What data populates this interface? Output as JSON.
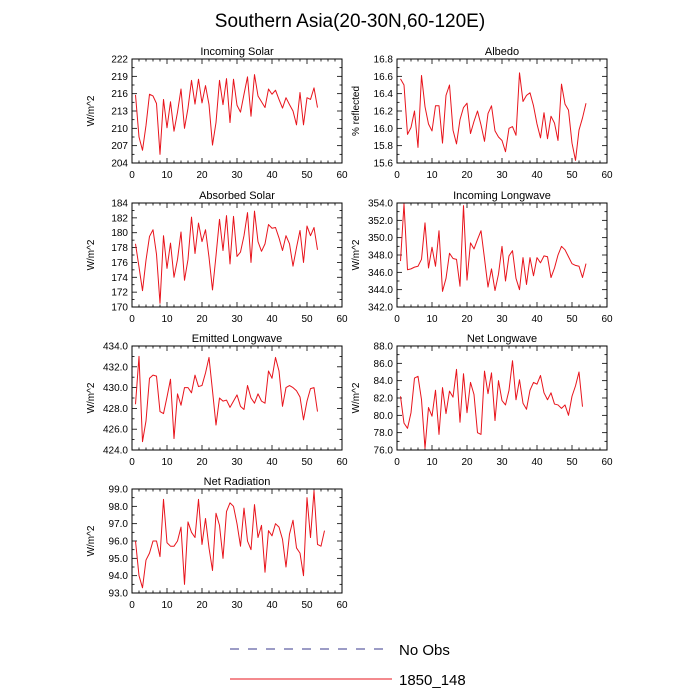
{
  "figure": {
    "title": "Southern Asia(20-30N,60-120E)",
    "line_color": "#e8141c",
    "obs_color": "#3a3a8c"
  },
  "legend": {
    "position": "bottom-center",
    "entries": [
      {
        "label": "No Obs",
        "style": "dashed",
        "color": "#3a3a8c"
      },
      {
        "label": "1850_148",
        "style": "solid",
        "color": "#e8141c"
      }
    ]
  },
  "chart_data": [
    {
      "type": "line",
      "title": "Incoming Solar",
      "ylabel": "W/m^2",
      "xlim": [
        0,
        60
      ],
      "ylim": [
        204,
        222
      ],
      "xticks": [
        0,
        10,
        20,
        30,
        40,
        50,
        60
      ],
      "yticks": [
        204,
        207,
        210,
        213,
        216,
        219,
        222
      ],
      "ytick_labels": [
        "204",
        "207",
        "210",
        "213",
        "216",
        "219",
        "222"
      ],
      "series": [
        {
          "name": "1850_148",
          "x_start": 1,
          "values": [
            215.8,
            208.5,
            206.2,
            210.5,
            215.9,
            215.6,
            214.3,
            205.5,
            215.0,
            210.1,
            214.6,
            209.5,
            212.8,
            216.8,
            210.0,
            213.5,
            218.3,
            214.2,
            218.5,
            214.4,
            217.4,
            214.1,
            207.1,
            211.0,
            218.3,
            214.1,
            218.6,
            211.0,
            218.5,
            214.0,
            212.8,
            215.9,
            218.9,
            212.1,
            219.3,
            215.6,
            214.6,
            213.6,
            216.8,
            215.9,
            216.6,
            215.0,
            213.5,
            215.3,
            214.1,
            213.0,
            210.6,
            216.2,
            210.6,
            215.3,
            215.0,
            217.0,
            213.6
          ]
        }
      ]
    },
    {
      "type": "line",
      "title": "Albedo",
      "ylabel": "% reflected",
      "xlim": [
        0,
        60
      ],
      "ylim": [
        15.6,
        16.8
      ],
      "xticks": [
        0,
        10,
        20,
        30,
        40,
        50,
        60
      ],
      "yticks": [
        15.6,
        15.8,
        16.0,
        16.2,
        16.4,
        16.6,
        16.8
      ],
      "ytick_labels": [
        "15.6",
        "15.8",
        "16.0",
        "16.2",
        "16.4",
        "16.6",
        "16.8"
      ],
      "series": [
        {
          "name": "1850_148",
          "x_start": 1,
          "values": [
            16.57,
            16.5,
            15.93,
            16.01,
            16.2,
            15.78,
            16.61,
            16.25,
            16.05,
            15.97,
            16.26,
            16.26,
            15.83,
            16.38,
            16.5,
            15.98,
            15.82,
            16.1,
            16.24,
            16.29,
            15.94,
            16.08,
            16.2,
            16.04,
            15.85,
            16.17,
            16.26,
            15.97,
            15.9,
            15.86,
            15.73,
            16.0,
            16.02,
            15.92,
            16.64,
            16.31,
            16.38,
            16.41,
            16.26,
            16.05,
            15.89,
            16.18,
            15.88,
            16.14,
            16.06,
            15.86,
            16.51,
            16.28,
            16.21,
            15.83,
            15.63,
            15.98,
            16.12,
            16.29
          ]
        }
      ]
    },
    {
      "type": "line",
      "title": "Absorbed Solar",
      "ylabel": "W/m^2",
      "xlim": [
        0,
        60
      ],
      "ylim": [
        170,
        184
      ],
      "xticks": [
        0,
        10,
        20,
        30,
        40,
        50,
        60
      ],
      "yticks": [
        170,
        172,
        174,
        176,
        178,
        180,
        182,
        184
      ],
      "ytick_labels": [
        "170",
        "172",
        "174",
        "176",
        "178",
        "180",
        "182",
        "184"
      ],
      "series": [
        {
          "name": "1850_148",
          "x_start": 1,
          "values": [
            178.5,
            175.4,
            172.2,
            176.3,
            179.5,
            180.4,
            177.1,
            170.5,
            179.6,
            175.2,
            178.6,
            174.0,
            176.4,
            180.1,
            173.6,
            176.4,
            182.1,
            177.2,
            181.3,
            178.8,
            180.4,
            176.7,
            172.3,
            176.9,
            181.8,
            177.6,
            182.3,
            175.8,
            182.2,
            176.8,
            177.4,
            179.6,
            182.7,
            176.0,
            182.9,
            178.8,
            177.5,
            178.5,
            181.1,
            180.6,
            180.7,
            179.3,
            177.6,
            179.6,
            178.5,
            175.5,
            178.0,
            180.3,
            176.0,
            180.9,
            179.6,
            180.7,
            177.7
          ]
        }
      ]
    },
    {
      "type": "line",
      "title": "Incoming Longwave",
      "ylabel": "W/m^2",
      "xlim": [
        0,
        60
      ],
      "ylim": [
        342,
        354
      ],
      "xticks": [
        0,
        10,
        20,
        30,
        40,
        50,
        60
      ],
      "yticks": [
        342,
        344,
        346,
        348,
        350,
        352,
        354
      ],
      "ytick_labels": [
        "342.0",
        "344.0",
        "346.0",
        "348.0",
        "350.0",
        "352.0",
        "354.0"
      ],
      "series": [
        {
          "name": "1850_148",
          "x_start": 1,
          "values": [
            347.3,
            353.9,
            346.3,
            346.4,
            346.6,
            346.7,
            347.5,
            351.7,
            346.5,
            348.9,
            346.7,
            350.8,
            343.8,
            345.3,
            348.2,
            347.6,
            347.5,
            344.4,
            353.7,
            345.1,
            349.4,
            348.7,
            349.8,
            350.8,
            347.6,
            344.3,
            346.4,
            343.9,
            345.8,
            349.0,
            345.0,
            347.9,
            348.5,
            345.3,
            344.0,
            347.7,
            344.6,
            347.7,
            345.6,
            347.7,
            347.1,
            347.9,
            347.8,
            345.4,
            346.5,
            348.0,
            349.0,
            348.6,
            347.8,
            347.0,
            346.8,
            346.7,
            345.4,
            347.0
          ]
        }
      ]
    },
    {
      "type": "line",
      "title": "Emitted Longwave",
      "ylabel": "W/m^2",
      "xlim": [
        0,
        60
      ],
      "ylim": [
        424,
        434
      ],
      "xticks": [
        0,
        10,
        20,
        30,
        40,
        50,
        60
      ],
      "yticks": [
        424,
        426,
        428,
        430,
        432,
        434
      ],
      "ytick_labels": [
        "424.0",
        "426.0",
        "428.0",
        "430.0",
        "432.0",
        "434.0"
      ],
      "series": [
        {
          "name": "1850_148",
          "x_start": 1,
          "values": [
            428.4,
            433.0,
            424.8,
            426.8,
            430.9,
            431.2,
            431.1,
            427.7,
            427.5,
            429.1,
            430.8,
            425.1,
            429.4,
            428.3,
            430.0,
            430.0,
            429.5,
            431.2,
            430.1,
            430.2,
            431.4,
            432.9,
            429.7,
            426.4,
            429.0,
            428.7,
            428.8,
            428.1,
            428.7,
            429.3,
            428.2,
            427.9,
            430.2,
            429.0,
            428.5,
            429.4,
            428.7,
            428.5,
            431.6,
            430.9,
            432.9,
            431.6,
            428.2,
            430.0,
            430.2,
            430.0,
            429.7,
            429.1,
            426.9,
            428.7,
            429.9,
            430.0,
            427.7
          ]
        }
      ]
    },
    {
      "type": "line",
      "title": "Net Longwave",
      "ylabel": "W/m^2",
      "xlim": [
        0,
        60
      ],
      "ylim": [
        76,
        88
      ],
      "xticks": [
        0,
        10,
        20,
        30,
        40,
        50,
        60
      ],
      "yticks": [
        76,
        78,
        80,
        82,
        84,
        86,
        88
      ],
      "ytick_labels": [
        "76.0",
        "78.0",
        "80.0",
        "82.0",
        "84.0",
        "86.0",
        "88.0"
      ],
      "series": [
        {
          "name": "1850_148",
          "x_start": 1,
          "values": [
            82.2,
            79.1,
            78.5,
            80.3,
            84.3,
            84.5,
            81.8,
            76.2,
            80.9,
            79.9,
            82.9,
            77.8,
            83.2,
            80.2,
            82.8,
            82.1,
            85.3,
            79.2,
            84.8,
            80.3,
            83.8,
            82.4,
            78.0,
            77.8,
            85.1,
            82.5,
            84.9,
            79.4,
            84.0,
            81.7,
            81.2,
            82.9,
            86.3,
            81.8,
            84.1,
            81.4,
            80.7,
            82.9,
            83.8,
            83.6,
            84.6,
            82.6,
            81.8,
            82.6,
            81.3,
            81.2,
            80.8,
            81.2,
            80.0,
            82.2,
            83.4,
            85.0,
            81.0
          ]
        }
      ]
    },
    {
      "type": "line",
      "title": "Net Radiation",
      "ylabel": "W/m^2",
      "xlim": [
        0,
        60
      ],
      "ylim": [
        93,
        99
      ],
      "xticks": [
        0,
        10,
        20,
        30,
        40,
        50,
        60
      ],
      "yticks": [
        93,
        94,
        95,
        96,
        97,
        98,
        99
      ],
      "ytick_labels": [
        "93.0",
        "94.0",
        "95.0",
        "96.0",
        "97.0",
        "98.0",
        "99.0"
      ],
      "series": [
        {
          "name": "1850_148",
          "x_start": 1,
          "values": [
            96.0,
            94.0,
            93.3,
            94.9,
            95.3,
            96.0,
            96.0,
            95.1,
            98.4,
            95.9,
            95.7,
            95.7,
            96.0,
            96.8,
            93.5,
            97.1,
            96.5,
            96.2,
            98.4,
            95.8,
            97.3,
            95.6,
            94.3,
            97.6,
            96.9,
            95.0,
            97.7,
            98.2,
            98.0,
            97.0,
            95.7,
            97.9,
            96.0,
            95.5,
            98.1,
            96.2,
            96.9,
            94.2,
            96.6,
            96.3,
            97.0,
            96.8,
            96.1,
            94.5,
            96.4,
            97.2,
            95.6,
            95.3,
            94.0,
            98.5,
            96.2,
            98.9,
            95.8,
            95.7,
            96.6
          ]
        }
      ]
    }
  ]
}
